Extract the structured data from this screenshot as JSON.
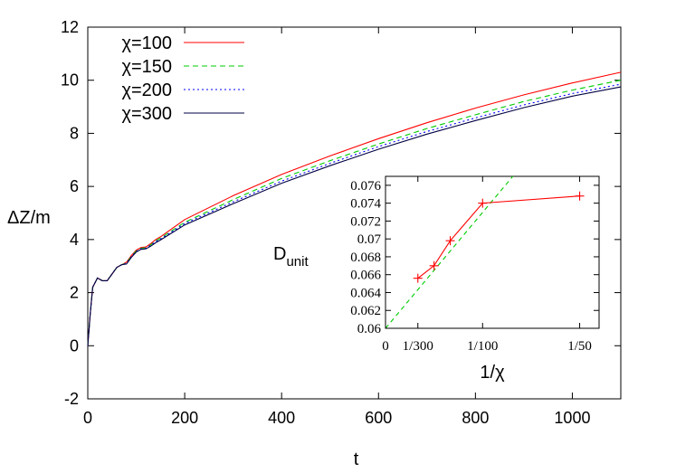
{
  "chart_data": [
    {
      "type": "line",
      "xlabel": "t",
      "ylabel": "ΔZ/m",
      "xlim": [
        0,
        1100
      ],
      "ylim": [
        -2,
        12
      ],
      "xticks": [
        0,
        200,
        400,
        600,
        800,
        1000
      ],
      "yticks": [
        -2,
        0,
        2,
        4,
        6,
        8,
        10,
        12
      ],
      "legend_position": "top-left",
      "series": [
        {
          "name": "χ=100",
          "color": "#ff0000",
          "dash": "solid",
          "x": [
            0,
            5,
            10,
            20,
            30,
            40,
            50,
            60,
            70,
            80,
            90,
            100,
            110,
            120,
            130,
            140,
            150,
            200,
            300,
            400,
            500,
            600,
            700,
            800,
            900,
            1000,
            1100
          ],
          "y": [
            0.0,
            1.2,
            2.2,
            2.55,
            2.45,
            2.45,
            2.7,
            2.95,
            3.05,
            3.15,
            3.4,
            3.6,
            3.7,
            3.72,
            3.85,
            4.0,
            4.1,
            4.75,
            5.65,
            6.45,
            7.15,
            7.8,
            8.4,
            8.95,
            9.45,
            9.9,
            10.3
          ]
        },
        {
          "name": "χ=150",
          "color": "#00cc00",
          "dash": "6,4",
          "x": [
            0,
            5,
            10,
            20,
            30,
            40,
            50,
            60,
            70,
            80,
            90,
            100,
            110,
            120,
            130,
            140,
            150,
            200,
            300,
            400,
            500,
            600,
            700,
            800,
            900,
            1000,
            1100
          ],
          "y": [
            0.0,
            1.2,
            2.2,
            2.55,
            2.45,
            2.45,
            2.7,
            2.95,
            3.05,
            3.12,
            3.37,
            3.57,
            3.67,
            3.69,
            3.8,
            3.95,
            4.05,
            4.65,
            5.5,
            6.3,
            6.97,
            7.6,
            8.18,
            8.7,
            9.2,
            9.63,
            10.0
          ]
        },
        {
          "name": "χ=200",
          "color": "#0000ff",
          "dash": "2,3",
          "x": [
            0,
            5,
            10,
            20,
            30,
            40,
            50,
            60,
            70,
            80,
            90,
            100,
            110,
            120,
            130,
            140,
            150,
            200,
            300,
            400,
            500,
            600,
            700,
            800,
            900,
            1000,
            1100
          ],
          "y": [
            0.0,
            1.2,
            2.2,
            2.55,
            2.45,
            2.45,
            2.7,
            2.95,
            3.05,
            3.1,
            3.35,
            3.55,
            3.65,
            3.67,
            3.78,
            3.92,
            4.02,
            4.6,
            5.42,
            6.2,
            6.87,
            7.5,
            8.07,
            8.58,
            9.07,
            9.5,
            9.85
          ]
        },
        {
          "name": "χ=300",
          "color": "#000044",
          "dash": "solid",
          "x": [
            0,
            5,
            10,
            20,
            30,
            40,
            50,
            60,
            70,
            80,
            90,
            100,
            110,
            120,
            130,
            140,
            150,
            200,
            300,
            400,
            500,
            600,
            700,
            800,
            900,
            1000,
            1100
          ],
          "y": [
            0.0,
            1.2,
            2.2,
            2.55,
            2.45,
            2.45,
            2.7,
            2.95,
            3.05,
            3.08,
            3.33,
            3.53,
            3.63,
            3.65,
            3.75,
            3.88,
            3.98,
            4.55,
            5.35,
            6.12,
            6.78,
            7.4,
            7.97,
            8.48,
            8.97,
            9.4,
            9.75
          ]
        }
      ]
    },
    {
      "type": "line",
      "xlabel": "1/χ",
      "ylabel": "D",
      "ylabel_sub": "unit",
      "xlim": [
        0,
        0.022
      ],
      "ylim": [
        0.06,
        0.077
      ],
      "xticks": [
        0,
        0.003333,
        0.01,
        0.02
      ],
      "xtick_labels": [
        "0",
        "1/300",
        "1/100",
        "1/50"
      ],
      "yticks": [
        0.06,
        0.062,
        0.064,
        0.066,
        0.068,
        0.07,
        0.072,
        0.074,
        0.076
      ],
      "ytick_labels": [
        "0.06",
        "0.062",
        "0.064",
        "0.066",
        "0.068",
        "0.07",
        "0.072",
        "0.074",
        "0.076"
      ],
      "series": [
        {
          "color": "#ff0000",
          "marker": "plus",
          "x": [
            0.003333,
            0.005,
            0.006667,
            0.01,
            0.02
          ],
          "y": [
            0.0656,
            0.067,
            0.0698,
            0.074,
            0.0748
          ]
        },
        {
          "color": "#00cc00",
          "dash": "5,4",
          "x": [
            0,
            0.0135
          ],
          "y": [
            0.06,
            0.0775
          ]
        }
      ]
    }
  ]
}
